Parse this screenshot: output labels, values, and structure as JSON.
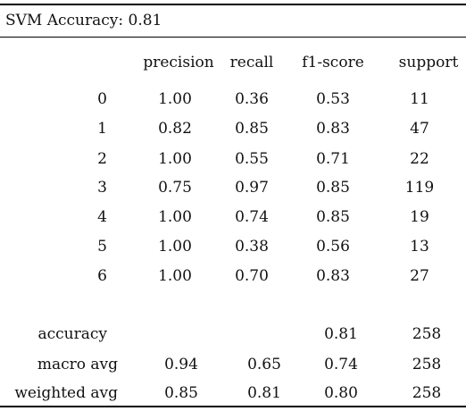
{
  "title": "SVM Accuracy: 0.81",
  "columns": [
    "precision",
    "recall",
    "f1-score",
    "support"
  ],
  "rows": [
    {
      "label": "0",
      "precision": "1.00",
      "recall": "0.36",
      "f1": "0.53",
      "support": "11"
    },
    {
      "label": "1",
      "precision": "0.82",
      "recall": "0.85",
      "f1": "0.83",
      "support": "47"
    },
    {
      "label": "2",
      "precision": "1.00",
      "recall": "0.55",
      "f1": "0.71",
      "support": "22"
    },
    {
      "label": "3",
      "precision": "0.75",
      "recall": "0.97",
      "f1": "0.85",
      "support": "119"
    },
    {
      "label": "4",
      "precision": "1.00",
      "recall": "0.74",
      "f1": "0.85",
      "support": "19"
    },
    {
      "label": "5",
      "precision": "1.00",
      "recall": "0.38",
      "f1": "0.56",
      "support": "13"
    },
    {
      "label": "6",
      "precision": "1.00",
      "recall": "0.70",
      "f1": "0.83",
      "support": "27"
    }
  ],
  "summary": [
    {
      "label": "accuracy",
      "precision": "",
      "recall": "",
      "f1": "0.81",
      "support": "258"
    },
    {
      "label": "macro avg",
      "precision": "0.94",
      "recall": "0.65",
      "f1": "0.74",
      "support": "258"
    },
    {
      "label": "weighted avg",
      "precision": "0.85",
      "recall": "0.81",
      "f1": "0.80",
      "support": "258"
    }
  ]
}
